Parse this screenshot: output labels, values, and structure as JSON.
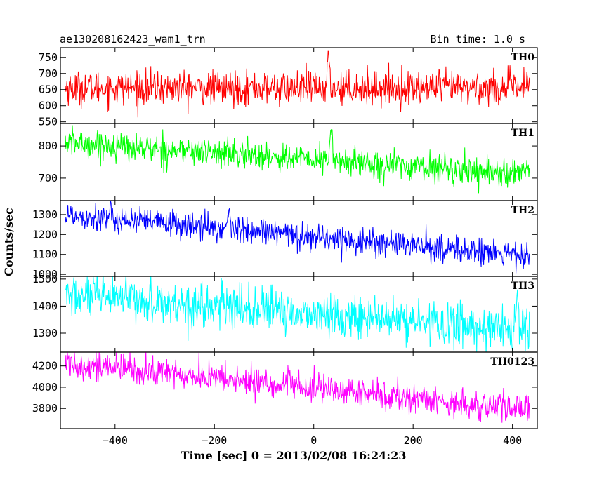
{
  "header": {
    "left": "ae130208162423_wam1_trn",
    "right": "Bin time: 1.0 s"
  },
  "chart_data": {
    "type": "line",
    "title": "ae130208162423_wam1_trn",
    "subtitle": "Bin time: 1.0 s",
    "xlabel": "Time [sec] 0 = 2013/02/08 16:24:23",
    "ylabel": "Counts/sec",
    "xlim": [
      -510,
      450
    ],
    "x_ticks": [
      -400,
      -200,
      0,
      200,
      400
    ],
    "x_tick_labels": [
      "−400",
      "−200",
      "0",
      "200",
      "400"
    ],
    "x_range": [
      -500,
      435
    ],
    "bin_time": 1.0,
    "panels": [
      {
        "name": "TH0",
        "color": "#ff0000",
        "ylim": [
          545,
          780
        ],
        "y_ticks": [
          550,
          600,
          650,
          700,
          750
        ],
        "y_tick_labels": [
          "550",
          "600",
          "650",
          "700",
          "750"
        ],
        "trend_start": 655,
        "trend_end": 655,
        "noise": 26,
        "spike": {
          "x": 30,
          "value": 770
        }
      },
      {
        "name": "TH1",
        "color": "#00ff00",
        "ylim": [
          630,
          870
        ],
        "y_ticks": [
          700,
          800
        ],
        "y_tick_labels": [
          "700",
          "800"
        ],
        "trend_start": 810,
        "trend_end": 712,
        "noise": 22,
        "spike": {
          "x": 35,
          "value": 860
        }
      },
      {
        "name": "TH2",
        "color": "#0000ff",
        "ylim": [
          990,
          1370
        ],
        "y_ticks": [
          1000,
          1100,
          1200,
          1300
        ],
        "y_tick_labels": [
          "1000",
          "1100",
          "1200",
          "1300"
        ],
        "trend_start": 1300,
        "trend_end": 1090,
        "noise": 35,
        "spike": {
          "x": -170,
          "value": 1340
        }
      },
      {
        "name": "TH3",
        "color": "#00ffff",
        "ylim": [
          1230,
          1510
        ],
        "y_ticks": [
          1300,
          1400,
          1500
        ],
        "y_tick_labels": [
          "1300",
          "1400",
          "1500"
        ],
        "trend_start": 1440,
        "trend_end": 1310,
        "noise": 40,
        "spike": {
          "x": 410,
          "value": 1450
        }
      },
      {
        "name": "TH0123",
        "color": "#ff00ff",
        "ylim": [
          3610,
          4330
        ],
        "y_ticks": [
          3800,
          4000,
          4200
        ],
        "y_tick_labels": [
          "3800",
          "4000",
          "4200"
        ],
        "trend_start": 4230,
        "trend_end": 3780,
        "noise": 70,
        "spike": {
          "x": 35,
          "value": 4070
        }
      }
    ]
  }
}
